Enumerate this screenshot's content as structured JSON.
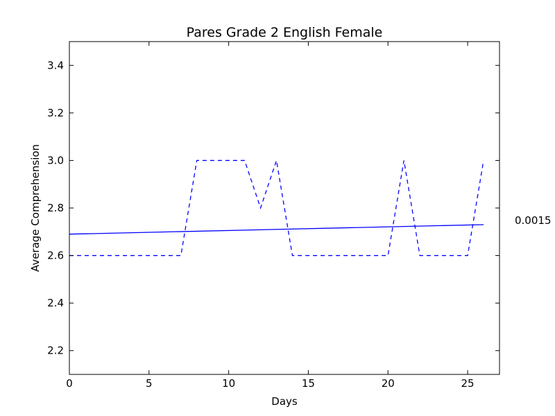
{
  "chart_data": {
    "type": "line",
    "title": "Pares Grade 2 English Female",
    "xlabel": "Days",
    "ylabel": "Average Comprehension",
    "xlim": [
      0,
      27
    ],
    "ylim": [
      2.1,
      3.5
    ],
    "xticks": [
      0,
      5,
      10,
      15,
      20,
      25
    ],
    "yticks": [
      2.2,
      2.4,
      2.6,
      2.8,
      3.0,
      3.2,
      3.4
    ],
    "xtick_labels": [
      "0",
      "5",
      "10",
      "15",
      "20",
      "25"
    ],
    "ytick_labels": [
      "2.2",
      "2.4",
      "2.6",
      "2.8",
      "3.0",
      "3.2",
      "3.4"
    ],
    "grid": false,
    "series": [
      {
        "style": "dashed",
        "color": "#0000ff",
        "x": [
          0,
          1,
          2,
          3,
          4,
          5,
          6,
          7,
          8,
          9,
          10,
          11,
          12,
          13,
          14,
          15,
          16,
          17,
          18,
          19,
          20,
          21,
          22,
          23,
          24,
          25,
          26
        ],
        "y": [
          2.6,
          2.6,
          2.6,
          2.6,
          2.6,
          2.6,
          2.6,
          2.6,
          3.0,
          3.0,
          3.0,
          3.0,
          2.8,
          3.0,
          2.6,
          2.6,
          2.6,
          2.6,
          2.6,
          2.6,
          2.6,
          3.0,
          2.6,
          2.6,
          2.6,
          2.6,
          3.0
        ]
      },
      {
        "style": "solid",
        "color": "#0000ff",
        "x": [
          0,
          26
        ],
        "y": [
          2.69,
          2.73
        ]
      }
    ],
    "annotation": "0.0015"
  }
}
